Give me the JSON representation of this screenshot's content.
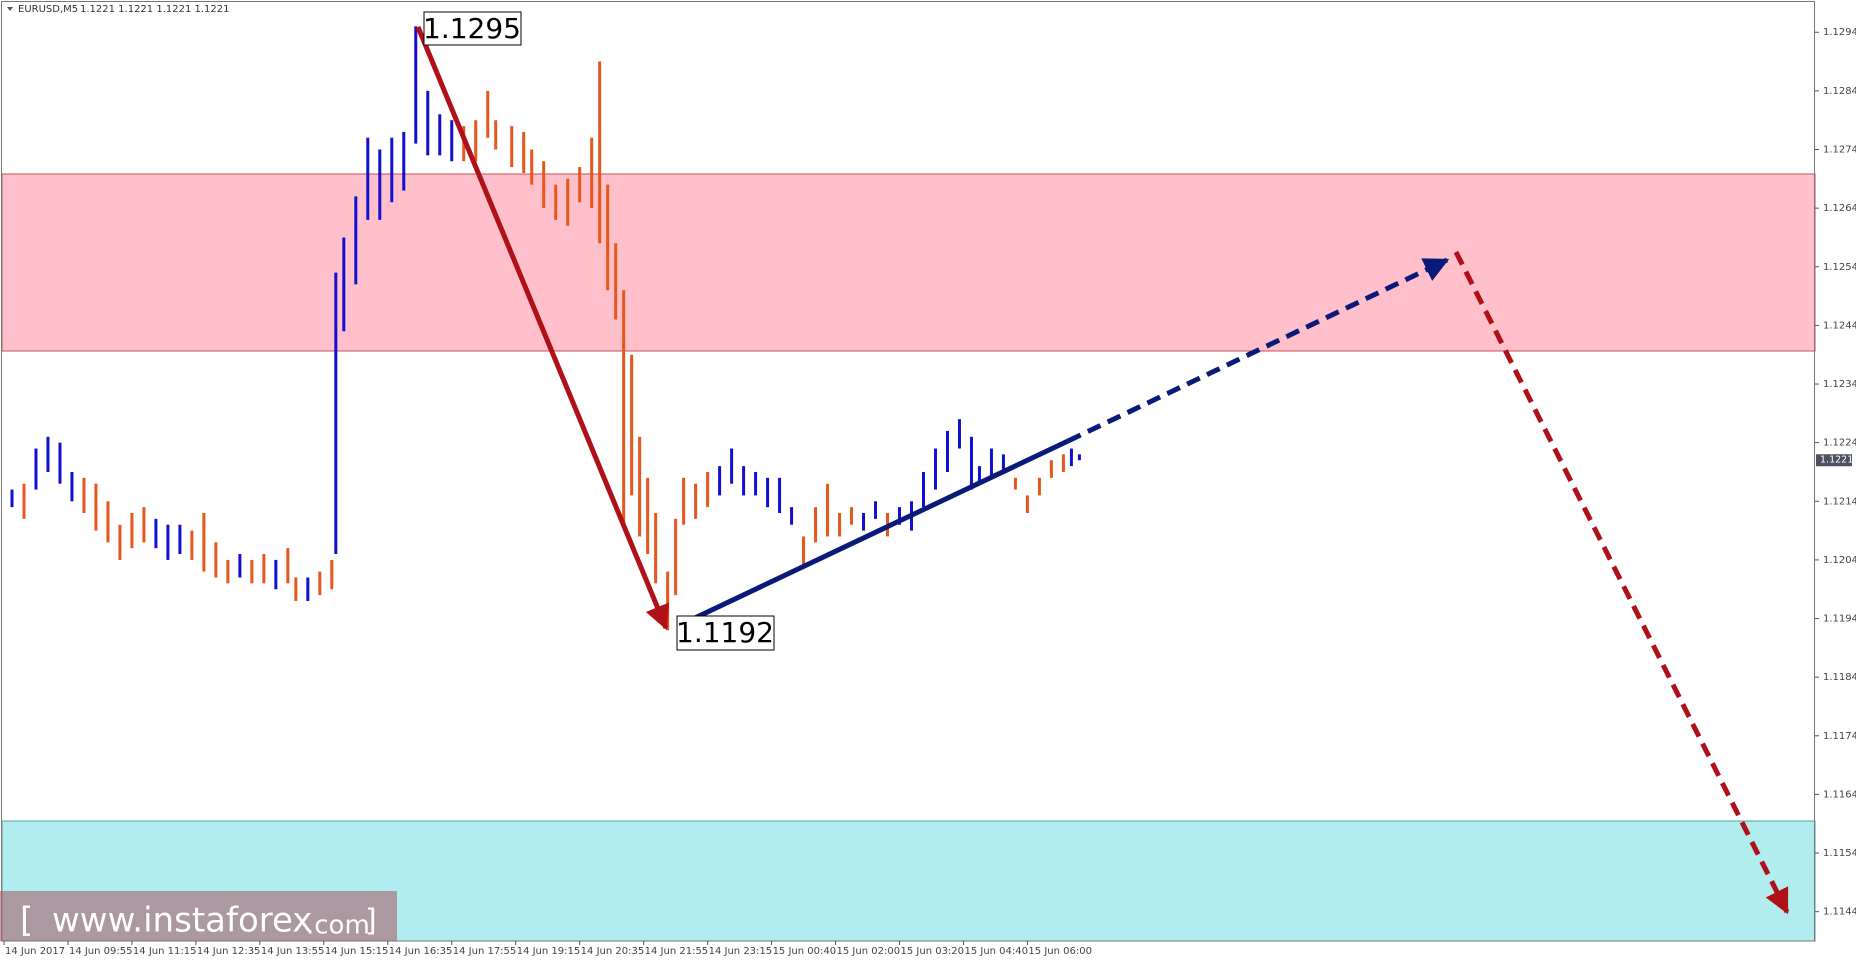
{
  "chart_data": {
    "type": "ohlc",
    "symbol": "EURUSD,M5",
    "quote": "1.1221 1.1221 1.1221 1.1221",
    "current_price": 1.1221,
    "ylim": [
      1.1139,
      1.12995
    ],
    "yticks": [
      1.1294,
      1.1284,
      1.1274,
      1.1264,
      1.1254,
      1.1244,
      1.1234,
      1.1224,
      1.1214,
      1.1204,
      1.1194,
      1.1184,
      1.1174,
      1.1164,
      1.1154,
      1.1144
    ],
    "xlim": [
      -1,
      453
    ],
    "xticks": [
      {
        "value": 0,
        "label": "14 Jun 2017"
      },
      {
        "value": 16,
        "label": "14 Jun 09:55"
      },
      {
        "value": 32,
        "label": "14 Jun 11:15"
      },
      {
        "value": 48,
        "label": "14 Jun 12:35"
      },
      {
        "value": 64,
        "label": "14 Jun 13:55"
      },
      {
        "value": 80,
        "label": "14 Jun 15:15"
      },
      {
        "value": 96,
        "label": "14 Jun 16:35"
      },
      {
        "value": 112,
        "label": "14 Jun 17:55"
      },
      {
        "value": 128,
        "label": "14 Jun 19:15"
      },
      {
        "value": 144,
        "label": "14 Jun 20:35"
      },
      {
        "value": 160,
        "label": "14 Jun 21:55"
      },
      {
        "value": 176,
        "label": "14 Jun 23:15"
      },
      {
        "value": 192,
        "label": "15 Jun 00:40"
      },
      {
        "value": 208,
        "label": "15 Jun 02:00"
      },
      {
        "value": 224,
        "label": "15 Jun 03:20"
      },
      {
        "value": 240,
        "label": "15 Jun 04:40"
      },
      {
        "value": 256,
        "label": "15 Jun 06:00"
      }
    ],
    "series": [
      {
        "color": "#1010d0",
        "bars": [
          [
            2,
            1.1216,
            1.1213
          ],
          [
            8,
            1.1223,
            1.1216
          ],
          [
            11,
            1.1225,
            1.1219
          ],
          [
            14,
            1.1224,
            1.1217
          ],
          [
            17,
            1.1219,
            1.1214
          ],
          [
            38,
            1.1211,
            1.1206
          ],
          [
            41,
            1.121,
            1.1204
          ],
          [
            44,
            1.121,
            1.1205
          ],
          [
            59,
            1.1205,
            1.1201
          ],
          [
            68,
            1.1204,
            1.1199
          ],
          [
            76,
            1.1201,
            1.1197
          ],
          [
            83,
            1.1253,
            1.1205
          ],
          [
            85,
            1.1259,
            1.1243
          ],
          [
            88,
            1.1266,
            1.1251
          ],
          [
            91,
            1.1276,
            1.1262
          ],
          [
            94,
            1.1274,
            1.1262
          ],
          [
            97,
            1.1276,
            1.1265
          ],
          [
            100,
            1.1277,
            1.1267
          ],
          [
            103,
            1.1295,
            1.1275
          ],
          [
            106,
            1.1284,
            1.1273
          ],
          [
            109,
            1.128,
            1.1273
          ],
          [
            112,
            1.1279,
            1.1272
          ],
          [
            179,
            1.122,
            1.1215
          ],
          [
            182,
            1.1223,
            1.1217
          ],
          [
            185,
            1.122,
            1.1215
          ],
          [
            188,
            1.1219,
            1.1215
          ],
          [
            191,
            1.1218,
            1.1213
          ],
          [
            194,
            1.1218,
            1.1212
          ],
          [
            197,
            1.1213,
            1.121
          ],
          [
            215,
            1.1212,
            1.1209
          ],
          [
            218,
            1.1214,
            1.1211
          ],
          [
            224,
            1.1213,
            1.121
          ],
          [
            227,
            1.1214,
            1.1209
          ],
          [
            230,
            1.1219,
            1.1213
          ],
          [
            233,
            1.1223,
            1.1216
          ],
          [
            236,
            1.1226,
            1.1219
          ],
          [
            239,
            1.1228,
            1.1223
          ],
          [
            242,
            1.1225,
            1.1216
          ],
          [
            244,
            1.122,
            1.1217
          ],
          [
            247,
            1.1223,
            1.1218
          ],
          [
            250,
            1.1222,
            1.1219
          ],
          [
            267,
            1.1223,
            1.122
          ],
          [
            269,
            1.1222,
            1.1221
          ]
        ]
      },
      {
        "color": "#e8561c",
        "bars": [
          [
            5,
            1.1217,
            1.1211
          ],
          [
            20,
            1.1218,
            1.1212
          ],
          [
            23,
            1.1217,
            1.1209
          ],
          [
            26,
            1.1214,
            1.1207
          ],
          [
            29,
            1.121,
            1.1204
          ],
          [
            32,
            1.1212,
            1.1206
          ],
          [
            35,
            1.1213,
            1.1207
          ],
          [
            47,
            1.1209,
            1.1204
          ],
          [
            50,
            1.1212,
            1.1202
          ],
          [
            53,
            1.1207,
            1.1201
          ],
          [
            56,
            1.1204,
            1.12
          ],
          [
            62,
            1.1204,
            1.12
          ],
          [
            65,
            1.1205,
            1.12
          ],
          [
            71,
            1.1206,
            1.12
          ],
          [
            73,
            1.1201,
            1.1197
          ],
          [
            79,
            1.1202,
            1.1198
          ],
          [
            82,
            1.1204,
            1.1199
          ],
          [
            115,
            1.1278,
            1.1272
          ],
          [
            118,
            1.1279,
            1.1272
          ],
          [
            121,
            1.1284,
            1.1276
          ],
          [
            123,
            1.1279,
            1.1274
          ],
          [
            127,
            1.1278,
            1.1271
          ],
          [
            130,
            1.1277,
            1.127
          ],
          [
            132,
            1.1274,
            1.1268
          ],
          [
            135,
            1.1272,
            1.1264
          ],
          [
            138,
            1.1268,
            1.1262
          ],
          [
            141,
            1.1269,
            1.1261
          ],
          [
            144,
            1.1271,
            1.1265
          ],
          [
            147,
            1.1276,
            1.1264
          ],
          [
            149,
            1.1289,
            1.1258
          ],
          [
            151,
            1.1268,
            1.125
          ],
          [
            153,
            1.1258,
            1.1245
          ],
          [
            155,
            1.125,
            1.121
          ],
          [
            157,
            1.1239,
            1.1215
          ],
          [
            159,
            1.1225,
            1.1208
          ],
          [
            161,
            1.1218,
            1.1205
          ],
          [
            163,
            1.1212,
            1.12
          ],
          [
            166,
            1.1202,
            1.1192
          ],
          [
            168,
            1.1211,
            1.1198
          ],
          [
            170,
            1.1218,
            1.121
          ],
          [
            173,
            1.1217,
            1.1211
          ],
          [
            176,
            1.1219,
            1.1213
          ],
          [
            200,
            1.1208,
            1.1203
          ],
          [
            203,
            1.1213,
            1.1207
          ],
          [
            206,
            1.1217,
            1.1208
          ],
          [
            209,
            1.1212,
            1.1208
          ],
          [
            212,
            1.1213,
            1.121
          ],
          [
            221,
            1.1212,
            1.1208
          ],
          [
            253,
            1.1218,
            1.1216
          ],
          [
            256,
            1.1215,
            1.1212
          ],
          [
            259,
            1.1218,
            1.1215
          ],
          [
            262,
            1.1221,
            1.1218
          ],
          [
            265,
            1.1222,
            1.1219
          ]
        ]
      }
    ],
    "annotations": [
      "1.1295",
      "1.1192"
    ],
    "watermark": [
      "[",
      "www.instaforex",
      ".com",
      "]"
    ]
  }
}
